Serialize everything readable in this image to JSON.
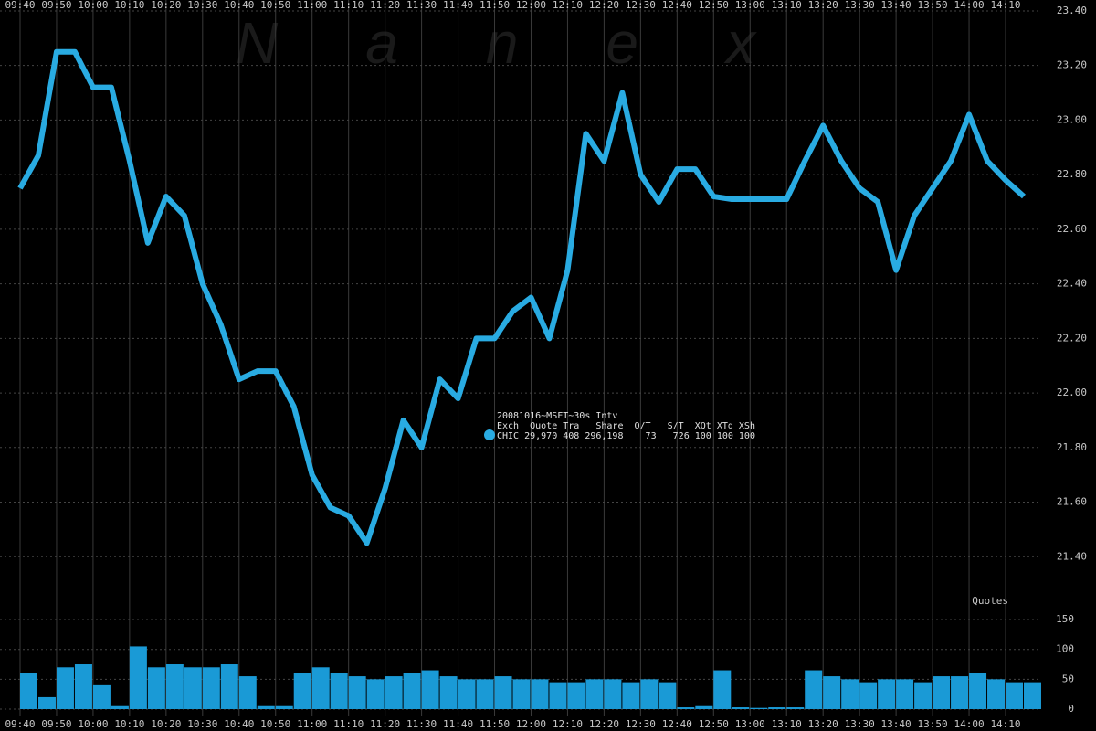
{
  "chart_data": [
    {
      "type": "line",
      "watermark": "Nanex",
      "categories": [
        "09:40",
        "09:50",
        "10:00",
        "10:10",
        "10:20",
        "10:30",
        "10:40",
        "10:50",
        "11:00",
        "11:10",
        "11:20",
        "11:30",
        "11:40",
        "11:50",
        "12:00",
        "12:10",
        "12:20",
        "12:30",
        "12:40",
        "12:50",
        "13:00",
        "13:10",
        "13:20",
        "13:30",
        "13:40",
        "13:50",
        "14:00",
        "14:10"
      ],
      "x": [
        "09:40",
        "09:45",
        "09:50",
        "09:55",
        "10:00",
        "10:05",
        "10:10",
        "10:15",
        "10:20",
        "10:25",
        "10:30",
        "10:35",
        "10:40",
        "10:45",
        "10:50",
        "10:55",
        "11:00",
        "11:05",
        "11:10",
        "11:15",
        "11:20",
        "11:25",
        "11:30",
        "11:35",
        "11:40",
        "11:45",
        "11:50",
        "11:55",
        "12:00",
        "12:05",
        "12:10",
        "12:15",
        "12:20",
        "12:25",
        "12:30",
        "12:35",
        "12:40",
        "12:45",
        "12:50",
        "12:55",
        "13:00",
        "13:05",
        "13:10",
        "13:15",
        "13:20",
        "13:25",
        "13:30",
        "13:35",
        "13:40",
        "13:45",
        "13:50",
        "13:55",
        "14:00",
        "14:05",
        "14:10",
        "14:15"
      ],
      "series": [
        {
          "name": "CHIC",
          "color": "#29abe2",
          "values": [
            22.75,
            22.87,
            23.25,
            23.25,
            23.12,
            23.12,
            22.85,
            22.55,
            22.72,
            22.65,
            22.4,
            22.25,
            22.05,
            22.08,
            22.08,
            21.95,
            21.7,
            21.58,
            21.55,
            21.45,
            21.65,
            21.9,
            21.8,
            22.05,
            21.98,
            22.2,
            22.2,
            22.3,
            22.35,
            22.2,
            22.45,
            22.95,
            22.85,
            23.1,
            22.8,
            22.7,
            22.82,
            22.82,
            22.72,
            22.71,
            22.71,
            22.71,
            22.71,
            22.85,
            22.98,
            22.85,
            22.75,
            22.7,
            22.45,
            22.65,
            22.75,
            22.85,
            23.02,
            22.85,
            22.78,
            22.72
          ]
        }
      ],
      "ylim": [
        21.2,
        23.44
      ],
      "yticks": [
        {
          "value": 21.4,
          "label": "21.40"
        },
        {
          "value": 21.6,
          "label": "21.60"
        },
        {
          "value": 21.8,
          "label": "21.80"
        },
        {
          "value": 22.0,
          "label": "22.00"
        },
        {
          "value": 22.2,
          "label": "22.20"
        },
        {
          "value": 22.4,
          "label": "22.40"
        },
        {
          "value": 22.6,
          "label": "22.60"
        },
        {
          "value": 22.8,
          "label": "22.80"
        },
        {
          "value": 23.0,
          "label": "23.00"
        },
        {
          "value": 23.2,
          "label": "23.20"
        },
        {
          "value": 23.4,
          "label": "23.40"
        }
      ],
      "grid": true,
      "annotation": {
        "title": "20081016~MSFT~30s Intv",
        "header": "Exch  Quote Tra   Share  Q/T   S/T  XQt XTd XSh",
        "row": "CHIC 29,970 408 296,198    73   726 100 100 100"
      }
    },
    {
      "type": "bar",
      "title": "Quotes",
      "x": [
        "09:40",
        "09:45",
        "09:50",
        "09:55",
        "10:00",
        "10:05",
        "10:10",
        "10:15",
        "10:20",
        "10:25",
        "10:30",
        "10:35",
        "10:40",
        "10:45",
        "10:50",
        "10:55",
        "11:00",
        "11:05",
        "11:10",
        "11:15",
        "11:20",
        "11:25",
        "11:30",
        "11:35",
        "11:40",
        "11:45",
        "11:50",
        "11:55",
        "12:00",
        "12:05",
        "12:10",
        "12:15",
        "12:20",
        "12:25",
        "12:30",
        "12:35",
        "12:40",
        "12:45",
        "12:50",
        "12:55",
        "13:00",
        "13:05",
        "13:10",
        "13:15",
        "13:20",
        "13:25",
        "13:30",
        "13:35",
        "13:40",
        "13:45",
        "13:50",
        "13:55",
        "14:00",
        "14:05",
        "14:10",
        "14:15"
      ],
      "values": [
        60,
        20,
        70,
        75,
        40,
        5,
        105,
        70,
        75,
        70,
        70,
        75,
        55,
        5,
        5,
        60,
        70,
        60,
        55,
        50,
        55,
        60,
        65,
        55,
        50,
        50,
        55,
        50,
        50,
        45,
        45,
        50,
        50,
        45,
        50,
        45,
        3,
        5,
        65,
        3,
        2,
        3,
        3,
        65,
        55,
        50,
        45,
        50,
        50,
        45,
        55,
        55,
        60,
        50,
        45,
        45
      ],
      "color": "#1a9ad6",
      "ylim": [
        0,
        160
      ],
      "yticks": [
        0,
        50,
        100,
        150
      ]
    }
  ]
}
